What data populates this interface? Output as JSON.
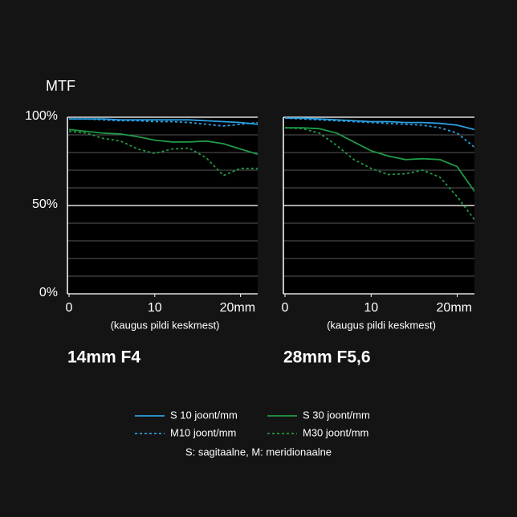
{
  "y_axis_title": "MTF",
  "legend_note": "S: sagitaalne, M: meridionaalne",
  "chart_data": [
    {
      "type": "line",
      "title": "14mm F4",
      "xlabel": "(kaugus pildi keskmest)",
      "x": [
        0,
        2,
        4,
        6,
        8,
        10,
        12,
        14,
        16,
        18,
        20,
        22
      ],
      "xlim": [
        0,
        22
      ],
      "xticks": [
        0,
        10,
        {
          "value": 20,
          "label": "20mm"
        }
      ],
      "ylim": [
        0,
        100
      ],
      "yticks": [
        {
          "value": 0,
          "label": "0%"
        },
        {
          "value": 50,
          "label": "50%"
        },
        {
          "value": 100,
          "label": "100%"
        }
      ],
      "minor_yticks": [
        10,
        20,
        30,
        40,
        60,
        70,
        80,
        90
      ],
      "series": [
        {
          "name": "S 10 joont/mm",
          "color": "#2b9fe0",
          "dashed": false,
          "values": [
            99,
            99,
            99,
            98.5,
            98.5,
            98.5,
            98.5,
            98.5,
            98,
            97.5,
            97,
            96
          ]
        },
        {
          "name": "S 30 joont/mm",
          "color": "#1f9a45",
          "dashed": false,
          "values": [
            93,
            92,
            91,
            90.5,
            89,
            87,
            86,
            86,
            86.5,
            85,
            82,
            79
          ]
        },
        {
          "name": "M10 joont/mm",
          "color": "#2b9fe0",
          "dashed": true,
          "values": [
            99,
            99,
            98.5,
            98,
            98,
            97.5,
            97.5,
            97,
            96,
            95,
            96,
            97
          ]
        },
        {
          "name": "M30 joont/mm",
          "color": "#1f9a45",
          "dashed": true,
          "values": [
            92,
            91,
            88,
            86.5,
            82,
            79.5,
            82,
            82.5,
            77,
            67,
            71,
            71
          ]
        }
      ]
    },
    {
      "type": "line",
      "title": "28mm F5,6",
      "xlabel": "(kaugus pildi keskmest)",
      "x": [
        0,
        2,
        4,
        6,
        8,
        10,
        12,
        14,
        16,
        18,
        20,
        22
      ],
      "xlim": [
        0,
        22
      ],
      "xticks": [
        0,
        10,
        {
          "value": 20,
          "label": "20mm"
        }
      ],
      "ylim": [
        0,
        100
      ],
      "minor_yticks": [
        0,
        10,
        20,
        30,
        40,
        50,
        60,
        70,
        80,
        90,
        100
      ],
      "series": [
        {
          "color": "#2b9fe0",
          "dashed": false,
          "values": [
            99.5,
            99.5,
            99,
            98.5,
            98,
            97.5,
            97.5,
            97,
            97,
            96.5,
            95.5,
            93
          ]
        },
        {
          "color": "#1f9a45",
          "dashed": false,
          "values": [
            94,
            94,
            93.5,
            91,
            86,
            81,
            78,
            76,
            76.5,
            76,
            72,
            58
          ]
        },
        {
          "color": "#2b9fe0",
          "dashed": true,
          "values": [
            99.5,
            99,
            98.5,
            98,
            97.5,
            97,
            96.5,
            96,
            95.5,
            94,
            91,
            83
          ]
        },
        {
          "color": "#1f9a45",
          "dashed": true,
          "values": [
            94,
            93.5,
            91,
            84,
            76,
            71,
            67.5,
            68,
            70,
            66,
            55,
            42
          ]
        }
      ]
    }
  ]
}
